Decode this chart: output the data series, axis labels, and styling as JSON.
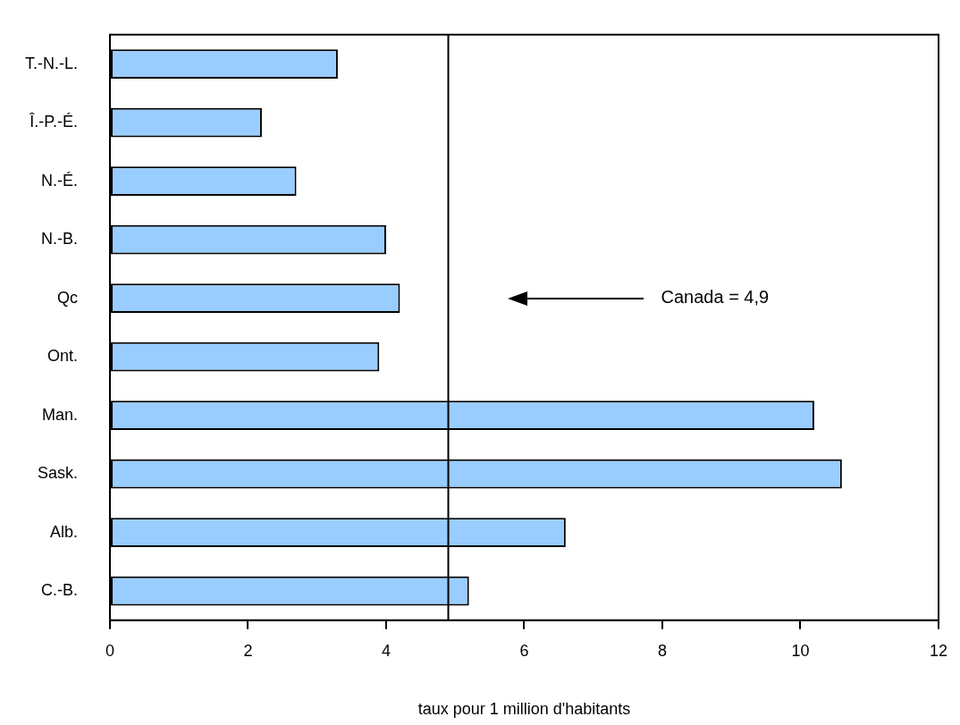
{
  "chart_data": {
    "type": "bar",
    "orientation": "horizontal",
    "xlabel": "taux pour 1 million d'habitants",
    "categories": [
      "T.-N.-L.",
      "Î.-P.-É.",
      "N.-É.",
      "N.-B.",
      "Qc",
      "Ont.",
      "Man.",
      "Sask.",
      "Alb.",
      "C.-B."
    ],
    "values": [
      3.3,
      2.2,
      2.7,
      4.0,
      4.2,
      3.9,
      10.2,
      10.6,
      6.6,
      5.2
    ],
    "color": "#99ccff",
    "xlim": [
      0,
      12
    ],
    "xticks": [
      0,
      2,
      4,
      6,
      8,
      10,
      12
    ],
    "grid": false,
    "legend": false,
    "ref_lines": [
      {
        "axis": "x",
        "value": 4.9,
        "label": "Canada = 4,9",
        "color": "#000000"
      }
    ]
  }
}
